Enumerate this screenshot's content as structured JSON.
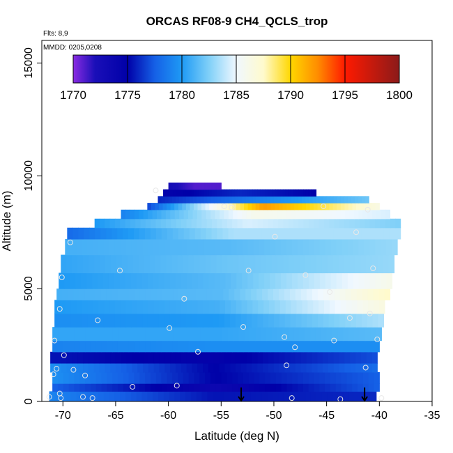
{
  "chart_data": {
    "type": "heatmap",
    "title": "ORCAS RF08-9 CH4_QCLS_trop",
    "xlabel": "Latitude (deg N)",
    "ylabel": "Altitude (m)",
    "xlim": [
      -72,
      -35
    ],
    "ylim": [
      0,
      16000
    ],
    "xticks": [
      -70,
      -65,
      -60,
      -55,
      -50,
      -45,
      -40,
      -35
    ],
    "yticks": [
      0,
      5000,
      10000,
      15000
    ],
    "annotations": {
      "flights": "Flts: 8,9",
      "dates": "MMDD: 0205,0208"
    },
    "colorbar": {
      "min": 1770,
      "max": 1800,
      "ticks": [
        1770,
        1775,
        1780,
        1785,
        1790,
        1795,
        1800
      ],
      "colors": [
        {
          "value": 1770,
          "color": "#8a2be2"
        },
        {
          "value": 1772,
          "color": "#1a0fb8"
        },
        {
          "value": 1775,
          "color": "#0000a8"
        },
        {
          "value": 1777.5,
          "color": "#1560e6"
        },
        {
          "value": 1780,
          "color": "#1e9af5"
        },
        {
          "value": 1782.5,
          "color": "#80d0f8"
        },
        {
          "value": 1785,
          "color": "#f0f8ff"
        },
        {
          "value": 1787.5,
          "color": "#fffacd"
        },
        {
          "value": 1790,
          "color": "#ffd700"
        },
        {
          "value": 1792.5,
          "color": "#ff8c00"
        },
        {
          "value": 1795,
          "color": "#ff1a00"
        },
        {
          "value": 1800,
          "color": "#8b1a1a"
        }
      ]
    },
    "field_layers": [
      {
        "lat_start": -71.3,
        "lat_end": -40.3,
        "alt_bottom": 0,
        "alt_top": 450,
        "ch4_start": 1779.0,
        "ch4_mid": 1775.5,
        "ch4_end": 1776.0
      },
      {
        "lat_start": -71.0,
        "lat_end": -40.0,
        "alt_bottom": 450,
        "alt_top": 800,
        "ch4_start": 1777.5,
        "ch4_mid": 1773.5,
        "ch4_end": 1777.5
      },
      {
        "lat_start": -71.0,
        "lat_end": -40.0,
        "alt_bottom": 800,
        "alt_top": 1300,
        "ch4_start": 1779.5,
        "ch4_mid": 1775.0,
        "ch4_end": 1777.5
      },
      {
        "lat_start": -71.2,
        "lat_end": -40.2,
        "alt_bottom": 1300,
        "alt_top": 1700,
        "ch4_start": 1779.5,
        "ch4_mid": 1775.0,
        "ch4_end": 1778.0
      },
      {
        "lat_start": -71.2,
        "lat_end": -40.2,
        "alt_bottom": 1700,
        "alt_top": 2200,
        "ch4_start": 1775.5,
        "ch4_mid": 1774.5,
        "ch4_end": 1777.0
      },
      {
        "lat_start": -71.0,
        "lat_end": -40.0,
        "alt_bottom": 2200,
        "alt_top": 2700,
        "ch4_start": 1779.0,
        "ch4_mid": 1779.5,
        "ch4_end": 1779.5
      },
      {
        "lat_start": -71.0,
        "lat_end": -39.8,
        "alt_bottom": 2700,
        "alt_top": 3300,
        "ch4_start": 1780.5,
        "ch4_mid": 1780.5,
        "ch4_end": 1781.5
      },
      {
        "lat_start": -70.8,
        "lat_end": -39.6,
        "alt_bottom": 3300,
        "alt_top": 3900,
        "ch4_start": 1779.5,
        "ch4_mid": 1780.0,
        "ch4_end": 1783.5
      },
      {
        "lat_start": -70.8,
        "lat_end": -39.5,
        "alt_bottom": 3900,
        "alt_top": 4500,
        "ch4_start": 1780.0,
        "ch4_mid": 1781.0,
        "ch4_end": 1786.5
      },
      {
        "lat_start": -70.6,
        "lat_end": -39.0,
        "alt_bottom": 4500,
        "alt_top": 5000,
        "ch4_start": 1781.0,
        "ch4_mid": 1781.5,
        "ch4_end": 1787.5
      },
      {
        "lat_start": -70.4,
        "lat_end": -38.8,
        "alt_bottom": 5000,
        "alt_top": 5700,
        "ch4_start": 1780.0,
        "ch4_mid": 1781.5,
        "ch4_end": 1786.0
      },
      {
        "lat_start": -70.2,
        "lat_end": -38.6,
        "alt_bottom": 5700,
        "alt_top": 6500,
        "ch4_start": 1780.5,
        "ch4_mid": 1782.0,
        "ch4_end": 1783.0
      },
      {
        "lat_start": -69.8,
        "lat_end": -38.3,
        "alt_bottom": 6500,
        "alt_top": 7200,
        "ch4_start": 1781.0,
        "ch4_mid": 1781.5,
        "ch4_end": 1783.0
      },
      {
        "lat_start": -69.6,
        "lat_end": -38.0,
        "alt_bottom": 7200,
        "alt_top": 7700,
        "ch4_start": 1778.0,
        "ch4_mid": 1783.5,
        "ch4_end": 1783.5
      },
      {
        "lat_start": -67.0,
        "lat_end": -38.0,
        "alt_bottom": 7700,
        "alt_top": 8100,
        "ch4_start": 1780.0,
        "ch4_mid": 1784.5,
        "ch4_end": 1782.5
      },
      {
        "lat_start": -64.5,
        "lat_end": -39.0,
        "alt_bottom": 8100,
        "alt_top": 8500,
        "ch4_start": 1779.0,
        "ch4_mid": 1786.0,
        "ch4_end": 1784.5
      },
      {
        "lat_start": -62.0,
        "lat_end": -40.0,
        "alt_bottom": 8500,
        "alt_top": 8800,
        "ch4_start": 1777.0,
        "ch4_mid": 1792.0,
        "ch4_end": 1786.5
      },
      {
        "lat_start": -61.0,
        "lat_end": -41.0,
        "alt_bottom": 8800,
        "alt_top": 9100,
        "ch4_start": 1776.0,
        "ch4_mid": 1779.0,
        "ch4_end": 1782.0
      },
      {
        "lat_start": -60.5,
        "lat_end": -46.0,
        "alt_bottom": 9100,
        "alt_top": 9400,
        "ch4_start": 1774.5,
        "ch4_mid": 1776.0,
        "ch4_end": 1775.0
      },
      {
        "lat_start": -60.0,
        "lat_end": -55.0,
        "alt_bottom": 9400,
        "alt_top": 9700,
        "ch4_start": 1772.5,
        "ch4_mid": 1771.0,
        "ch4_end": 1771.0
      }
    ],
    "sample_points": [
      {
        "lat": -71.3,
        "alt": 200
      },
      {
        "lat": -70.3,
        "alt": 350
      },
      {
        "lat": -70.2,
        "alt": 150
      },
      {
        "lat": -68.1,
        "alt": 200
      },
      {
        "lat": -67.2,
        "alt": 150
      },
      {
        "lat": -63.4,
        "alt": 650
      },
      {
        "lat": -59.2,
        "alt": 700
      },
      {
        "lat": -48.3,
        "alt": 150
      },
      {
        "lat": -43.7,
        "alt": 100
      },
      {
        "lat": -39.8,
        "alt": 150
      },
      {
        "lat": -70.9,
        "alt": 1200
      },
      {
        "lat": -70.6,
        "alt": 1450
      },
      {
        "lat": -69.0,
        "alt": 1400
      },
      {
        "lat": -67.9,
        "alt": 1150
      },
      {
        "lat": -69.9,
        "alt": 2050
      },
      {
        "lat": -57.2,
        "alt": 2200
      },
      {
        "lat": -48.8,
        "alt": 1600
      },
      {
        "lat": -48.0,
        "alt": 2400
      },
      {
        "lat": -41.3,
        "alt": 1500
      },
      {
        "lat": -70.8,
        "alt": 2700
      },
      {
        "lat": -66.7,
        "alt": 3600
      },
      {
        "lat": -59.9,
        "alt": 3250
      },
      {
        "lat": -52.9,
        "alt": 3300
      },
      {
        "lat": -49.0,
        "alt": 2850
      },
      {
        "lat": -44.3,
        "alt": 2700
      },
      {
        "lat": -40.2,
        "alt": 2750
      },
      {
        "lat": -70.3,
        "alt": 4100
      },
      {
        "lat": -58.5,
        "alt": 4550
      },
      {
        "lat": -42.8,
        "alt": 3700
      },
      {
        "lat": -40.9,
        "alt": 3900
      },
      {
        "lat": -70.1,
        "alt": 5500
      },
      {
        "lat": -64.6,
        "alt": 5800
      },
      {
        "lat": -52.4,
        "alt": 5800
      },
      {
        "lat": -47.0,
        "alt": 5600
      },
      {
        "lat": -44.7,
        "alt": 4850
      },
      {
        "lat": -40.6,
        "alt": 5900
      },
      {
        "lat": -69.3,
        "alt": 7050
      },
      {
        "lat": -49.9,
        "alt": 7300
      },
      {
        "lat": -42.2,
        "alt": 7500
      },
      {
        "lat": -61.2,
        "alt": 9350
      },
      {
        "lat": -54.7,
        "alt": 8650
      },
      {
        "lat": -54.0,
        "alt": 8600
      },
      {
        "lat": -45.3,
        "alt": 8650
      },
      {
        "lat": -41.1,
        "alt": 8500
      }
    ],
    "markers": [
      {
        "lat": -53.1,
        "label": "down-arrow"
      },
      {
        "lat": -41.4,
        "label": "down-arrow"
      }
    ]
  }
}
